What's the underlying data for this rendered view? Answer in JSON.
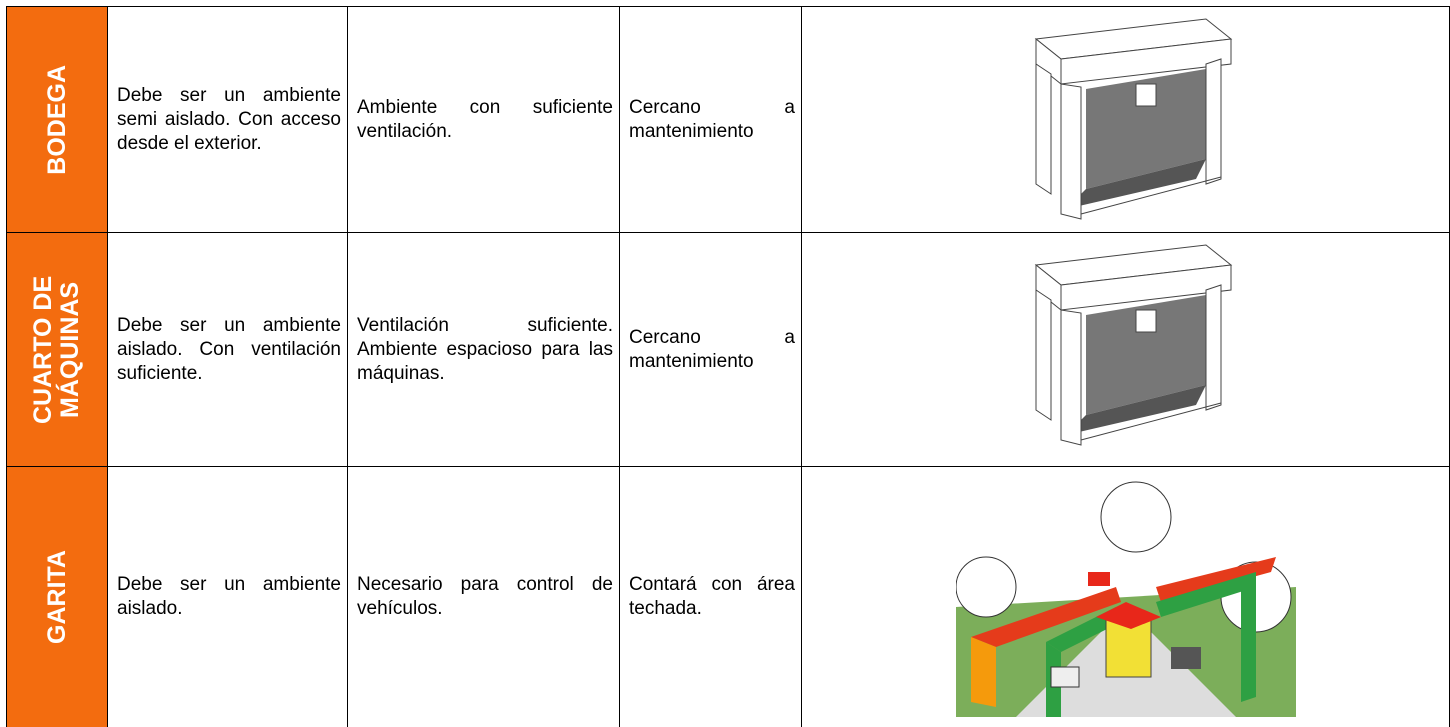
{
  "table": {
    "rows": [
      {
        "label": "BODEGA",
        "cells": [
          "Debe ser un ambiente semi aislado. Con acceso desde el exterior.",
          "Ambiente con suficiente ventilación.",
          "Cercano a mantenimiento"
        ]
      },
      {
        "label": "CUARTO DE MÁQUINAS",
        "cells": [
          "Debe ser un ambiente aislado. Con ventilación suficiente.",
          "Ventilación suficiente. Ambiente espacioso para las máquinas.",
          "Cercano a mantenimiento"
        ]
      },
      {
        "label": "GARITA",
        "cells": [
          "Debe ser un ambiente aislado.",
          "Necesario para control de vehículos.",
          "Contará con área techada."
        ]
      }
    ]
  }
}
